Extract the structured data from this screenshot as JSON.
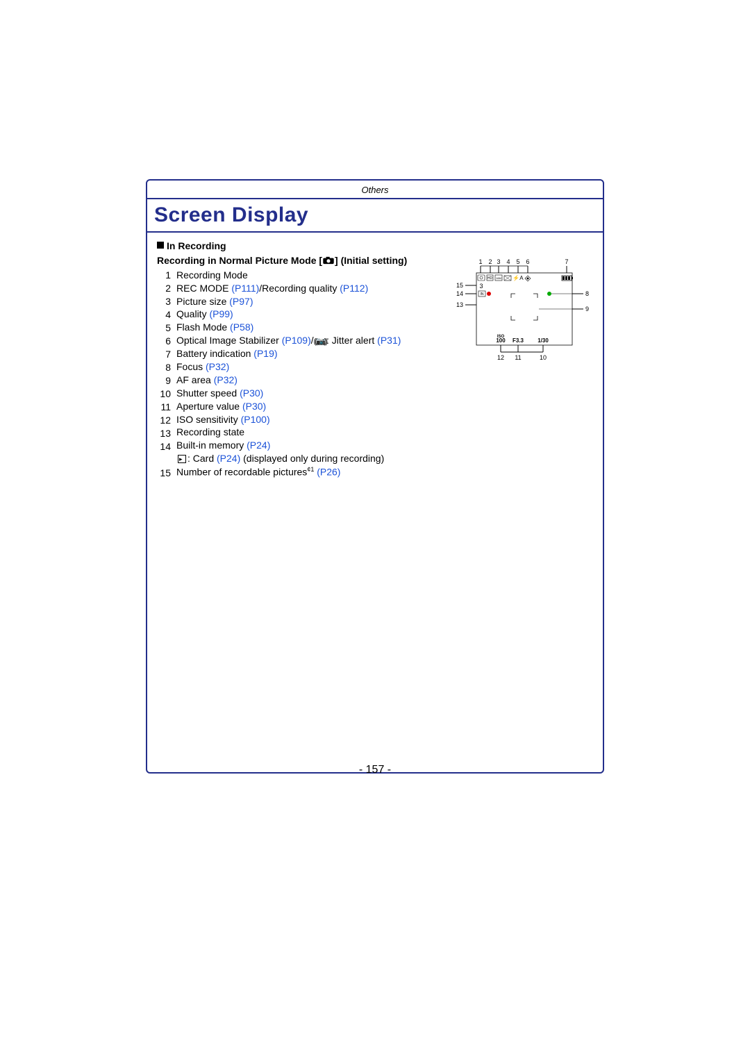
{
  "header": {
    "section": "Others",
    "title": "Screen Display"
  },
  "sub": {
    "line1": "In Recording",
    "line2_a": "Recording in Normal Picture Mode [",
    "line2_b": "] (Initial setting)"
  },
  "items": [
    {
      "n": "1",
      "t": [
        {
          "txt": "Recording Mode"
        }
      ]
    },
    {
      "n": "2",
      "t": [
        {
          "txt": "REC MODE "
        },
        {
          "txt": "(P111)",
          "link": true
        },
        {
          "txt": "/Recording quality "
        },
        {
          "txt": "(P112)",
          "link": true
        }
      ]
    },
    {
      "n": "3",
      "t": [
        {
          "txt": "Picture size "
        },
        {
          "txt": "(P97)",
          "link": true
        }
      ]
    },
    {
      "n": "4",
      "t": [
        {
          "txt": "Quality "
        },
        {
          "txt": "(P99)",
          "link": true
        }
      ]
    },
    {
      "n": "5",
      "t": [
        {
          "txt": "Flash Mode "
        },
        {
          "txt": "(P58)",
          "link": true
        }
      ]
    },
    {
      "n": "6",
      "t": [
        {
          "txt": "Optical Image Stabilizer "
        },
        {
          "txt": "(P109)",
          "link": true
        },
        {
          "txt": "/"
        },
        {
          "jitter": true
        },
        {
          "txt": ": Jitter alert "
        },
        {
          "txt": "(P31)",
          "link": true
        }
      ]
    },
    {
      "n": "7",
      "t": [
        {
          "txt": "Battery indication "
        },
        {
          "txt": "(P19)",
          "link": true
        }
      ]
    },
    {
      "n": "8",
      "t": [
        {
          "txt": "Focus "
        },
        {
          "txt": "(P32)",
          "link": true
        }
      ]
    },
    {
      "n": "9",
      "t": [
        {
          "txt": "AF area "
        },
        {
          "txt": "(P32)",
          "link": true
        }
      ]
    },
    {
      "n": "10",
      "t": [
        {
          "txt": "Shutter speed "
        },
        {
          "txt": "(P30)",
          "link": true
        }
      ]
    },
    {
      "n": "11",
      "t": [
        {
          "txt": "Aperture value "
        },
        {
          "txt": "(P30)",
          "link": true
        }
      ]
    },
    {
      "n": "12",
      "t": [
        {
          "txt": "ISO sensitivity "
        },
        {
          "txt": "(P100)",
          "link": true
        }
      ]
    },
    {
      "n": "13",
      "t": [
        {
          "txt": "Recording state"
        }
      ]
    },
    {
      "n": "14",
      "t": [
        {
          "txt": "Built-in memory "
        },
        {
          "txt": "(P24)",
          "link": true
        }
      ]
    },
    {
      "n": "",
      "t": [
        {
          "card": true
        },
        {
          "txt": ": Card "
        },
        {
          "txt": "(P24)",
          "link": true
        },
        {
          "txt": " (displayed only during recording)"
        }
      ]
    },
    {
      "n": "15",
      "t": [
        {
          "txt": "Number of recordable pictures"
        },
        {
          "sup": "¢1"
        },
        {
          "txt": " "
        },
        {
          "txt": "(P26)",
          "link": true
        }
      ]
    }
  ],
  "diagram": {
    "top_labels": [
      "1",
      "2",
      "3",
      "4",
      "5",
      "6"
    ],
    "right_labels": [
      "7",
      "8",
      "9"
    ],
    "left_labels": [
      "15",
      "14",
      "13"
    ],
    "bottom_labels": [
      "12",
      "11",
      "10"
    ],
    "bottom_values": [
      "100",
      "F3.3",
      "1/30"
    ],
    "iso_label": "ISO",
    "count_value": "3"
  },
  "page_number": "- 157 -"
}
